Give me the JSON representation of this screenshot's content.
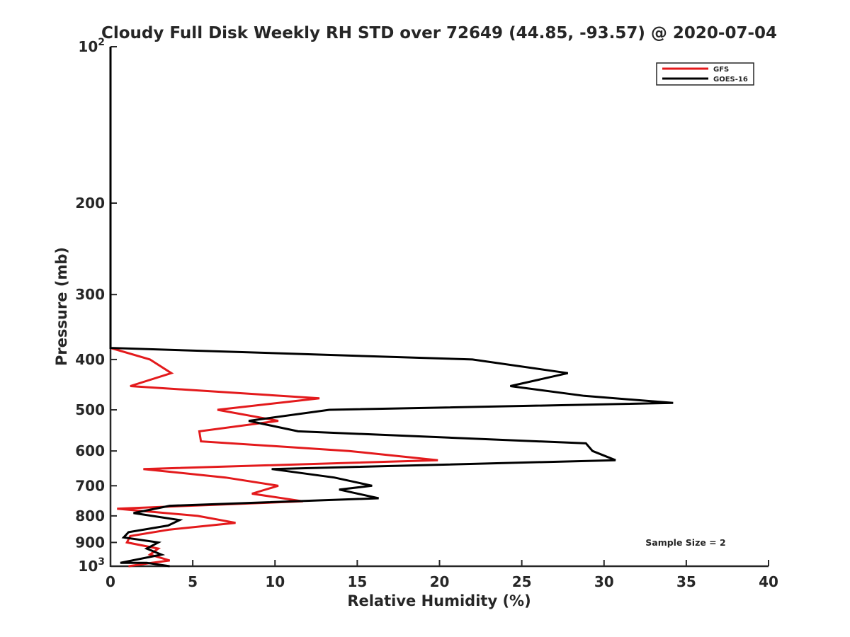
{
  "chart_data": {
    "type": "line",
    "title": "Cloudy Full Disk Weekly RH STD over 72649 (44.85, -93.57) @ 2020-07-04",
    "xlabel": "Relative Humidity (%)",
    "ylabel": "Pressure (mb)",
    "xlim": [
      0,
      40
    ],
    "ylim": [
      100,
      1000
    ],
    "y_scale": "log",
    "y_reversed": true,
    "grid": false,
    "legend_position": "top-right",
    "x_ticks": [
      "0",
      "5",
      "10",
      "15",
      "20",
      "25",
      "30",
      "35",
      "40"
    ],
    "y_ticks": [
      {
        "value": 100,
        "base": "10",
        "exp": "2"
      },
      {
        "value": 200,
        "label": "200"
      },
      {
        "value": 300,
        "label": "300"
      },
      {
        "value": 400,
        "label": "400"
      },
      {
        "value": 500,
        "label": "500"
      },
      {
        "value": 600,
        "label": "600"
      },
      {
        "value": 700,
        "label": "700"
      },
      {
        "value": 800,
        "label": "800"
      },
      {
        "value": 900,
        "label": "900"
      },
      {
        "value": 1000,
        "base": "10",
        "exp": "3"
      }
    ],
    "annotation": "Sample Size = 2",
    "series": [
      {
        "name": "GFS",
        "color": "#e31a1c",
        "points": [
          [
            0,
            100
          ],
          [
            0,
            150
          ],
          [
            0,
            200
          ],
          [
            0,
            250
          ],
          [
            0,
            300
          ],
          [
            0,
            350
          ],
          [
            0,
            380
          ],
          [
            2.4,
            400
          ],
          [
            3.7,
            425
          ],
          [
            1.2,
            450
          ],
          [
            12.7,
            475
          ],
          [
            6.5,
            500
          ],
          [
            10.2,
            525
          ],
          [
            5.4,
            550
          ],
          [
            5.5,
            575
          ],
          [
            14.5,
            600
          ],
          [
            19.9,
            625
          ],
          [
            2.0,
            650
          ],
          [
            7.0,
            675
          ],
          [
            10.2,
            700
          ],
          [
            8.6,
            725
          ],
          [
            11.7,
            750
          ],
          [
            0.4,
            775
          ],
          [
            5.3,
            800
          ],
          [
            7.6,
            825
          ],
          [
            3.6,
            850
          ],
          [
            1.2,
            875
          ],
          [
            1.0,
            900
          ],
          [
            2.9,
            925
          ],
          [
            2.4,
            950
          ],
          [
            3.6,
            975
          ],
          [
            2.5,
            985
          ],
          [
            1.1,
            1000
          ],
          [
            1.2,
            1010
          ]
        ]
      },
      {
        "name": "GOES-16",
        "color": "#000000",
        "points": [
          [
            0,
            100
          ],
          [
            0,
            150
          ],
          [
            0,
            200
          ],
          [
            0,
            250
          ],
          [
            0,
            300
          ],
          [
            0,
            350
          ],
          [
            0,
            380
          ],
          [
            22.0,
            400
          ],
          [
            27.8,
            425
          ],
          [
            24.3,
            450
          ],
          [
            28.8,
            470
          ],
          [
            34.2,
            485
          ],
          [
            13.3,
            500
          ],
          [
            8.4,
            525
          ],
          [
            11.4,
            550
          ],
          [
            28.9,
            580
          ],
          [
            29.3,
            600
          ],
          [
            30.7,
            625
          ],
          [
            9.8,
            650
          ],
          [
            13.6,
            675
          ],
          [
            15.9,
            700
          ],
          [
            13.9,
            712
          ],
          [
            16.3,
            740
          ],
          [
            3.6,
            765
          ],
          [
            1.4,
            790
          ],
          [
            4.2,
            815
          ],
          [
            3.5,
            835
          ],
          [
            1.1,
            860
          ],
          [
            0.8,
            880
          ],
          [
            2.9,
            900
          ],
          [
            2.2,
            925
          ],
          [
            3.1,
            950
          ],
          [
            0.6,
            985
          ],
          [
            2.2,
            985
          ],
          [
            3.6,
            1010
          ]
        ]
      }
    ]
  }
}
